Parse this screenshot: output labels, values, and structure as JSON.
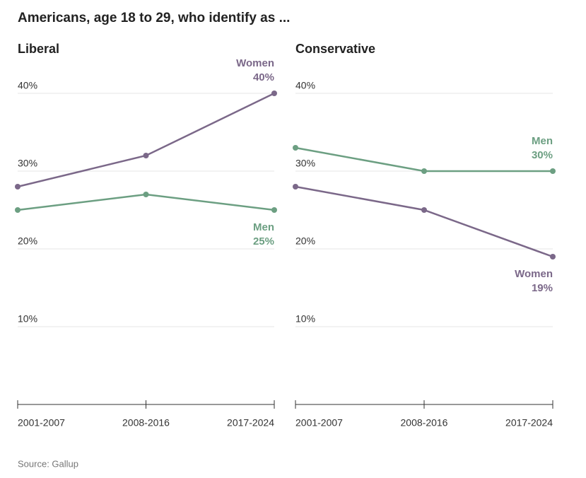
{
  "title": "Americans, age 18 to 29, who identify as ...",
  "source": "Source: Gallup",
  "chart_data": [
    {
      "type": "line",
      "title": "Liberal",
      "categories": [
        "2001-2007",
        "2008-2016",
        "2017-2024"
      ],
      "series": [
        {
          "name": "Women",
          "color": "#7b6889",
          "values": [
            28,
            32,
            40
          ],
          "value_labels": [
            null,
            null,
            "40%"
          ]
        },
        {
          "name": "Men",
          "color": "#6c9f82",
          "values": [
            25,
            27,
            25
          ],
          "value_labels": [
            null,
            null,
            "25%"
          ]
        }
      ],
      "ylim": [
        0,
        40
      ],
      "yticks": [
        {
          "value": 10,
          "label": "10%"
        },
        {
          "value": 20,
          "label": "20%"
        },
        {
          "value": 30,
          "label": "30%"
        },
        {
          "value": 40,
          "label": "40%"
        }
      ],
      "grid": true
    },
    {
      "type": "line",
      "title": "Conservative",
      "categories": [
        "2001-2007",
        "2008-2016",
        "2017-2024"
      ],
      "series": [
        {
          "name": "Men",
          "color": "#6c9f82",
          "values": [
            33,
            30,
            30
          ],
          "value_labels": [
            null,
            null,
            "30%"
          ]
        },
        {
          "name": "Women",
          "color": "#7b6889",
          "values": [
            28,
            25,
            19
          ],
          "value_labels": [
            null,
            null,
            "19%"
          ]
        }
      ],
      "ylim": [
        0,
        40
      ],
      "yticks": [
        {
          "value": 10,
          "label": "10%"
        },
        {
          "value": 20,
          "label": "20%"
        },
        {
          "value": 30,
          "label": "30%"
        },
        {
          "value": 40,
          "label": "40%"
        }
      ],
      "grid": true
    }
  ]
}
